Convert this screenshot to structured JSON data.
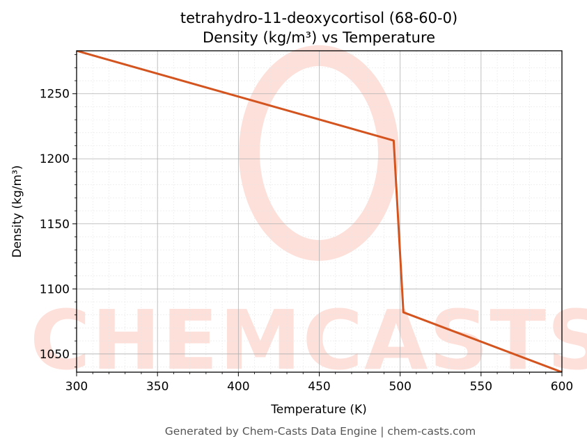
{
  "chart_data": {
    "type": "line",
    "title": "tetrahydro-11-deoxycortisol (68-60-0)",
    "subtitle": "Density (kg/m³) vs Temperature",
    "xlabel": "Temperature (K)",
    "ylabel": "Density (kg/m³)",
    "xlim": [
      300,
      600
    ],
    "ylim": [
      1036,
      1283
    ],
    "xticks": [
      300,
      350,
      400,
      450,
      500,
      550,
      600
    ],
    "yticks": [
      1050,
      1100,
      1150,
      1200,
      1250
    ],
    "grid": true,
    "series": [
      {
        "color": "#d4541f",
        "x": [
          300,
          496,
          502,
          600
        ],
        "y": [
          1283,
          1214,
          1082,
          1036
        ]
      }
    ]
  },
  "watermark": {
    "text": "CHEMCASTS"
  },
  "footer": "Generated by Chem-Casts Data Engine | chem-casts.com"
}
